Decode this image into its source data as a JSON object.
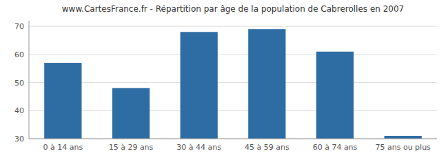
{
  "chart_data": {
    "type": "bar",
    "title": "www.CartesFrance.fr - Répartition par âge de la population de Cabrerolles en 2007",
    "categories": [
      "0 à 14 ans",
      "15 à 29 ans",
      "30 à 44 ans",
      "45 à 59 ans",
      "60 à 74 ans",
      "75 ans ou plus"
    ],
    "values": [
      57,
      48,
      68,
      69,
      61,
      31
    ],
    "color": "#2E6DA4",
    "ylim": [
      30,
      72
    ],
    "yticks": [
      30,
      40,
      50,
      60,
      70
    ],
    "grid": true
  }
}
